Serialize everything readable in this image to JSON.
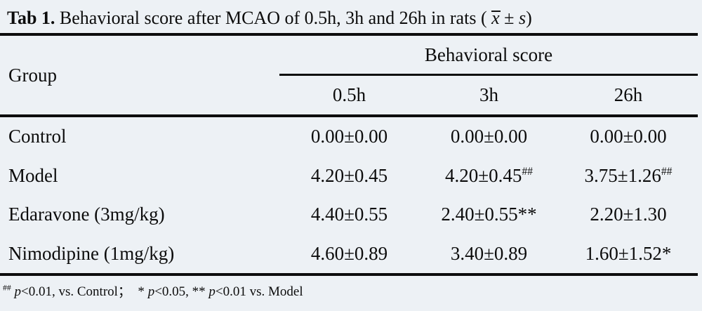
{
  "caption": {
    "label": "Tab 1.",
    "text": " Behavioral score after MCAO of 0.5h, 3h and 26h in rats ( ",
    "mean": "x",
    "pm": " ± ",
    "s": "s",
    "close": ")"
  },
  "header": {
    "group": "Group",
    "spanner": "Behavioral score",
    "columns": [
      "0.5h",
      "3h",
      "26h"
    ]
  },
  "rows": [
    {
      "group": "Control",
      "values": [
        "0.00±0.00",
        "0.00±0.00",
        "0.00±0.00"
      ],
      "sups": [
        "",
        "",
        ""
      ]
    },
    {
      "group": "Model",
      "values": [
        "4.20±0.45",
        "4.20±0.45",
        "3.75±1.26"
      ],
      "sups": [
        "",
        "##",
        "##"
      ]
    },
    {
      "group": "Edaravone (3mg/kg)",
      "values": [
        "4.40±0.55",
        "2.40±0.55**",
        "2.20±1.30"
      ],
      "sups": [
        "",
        "",
        ""
      ]
    },
    {
      "group": "Nimodipine (1mg/kg)",
      "values": [
        "4.60±0.89",
        "3.40±0.89",
        "1.60±1.52*"
      ],
      "sups": [
        "",
        "",
        ""
      ]
    }
  ],
  "footnote": {
    "marker": "##",
    "space": " ",
    "p": "p",
    "seg1": "<0.01, vs. Control；  * ",
    "seg2": "<0.05, ** ",
    "seg3": "<0.01 vs. Model"
  },
  "colors": {
    "background": "#edf1f5",
    "text": "#0c0c0c",
    "rule": "#0d0d0d"
  }
}
